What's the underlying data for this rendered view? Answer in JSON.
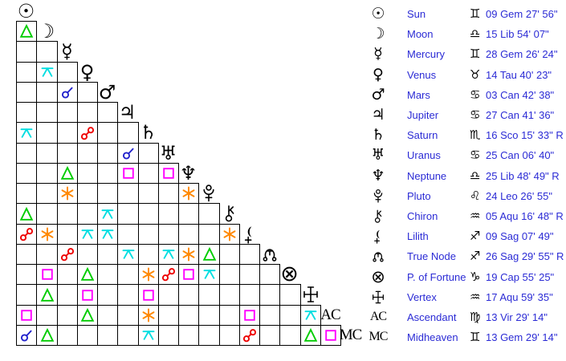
{
  "colors": {
    "background": "#ffffff",
    "grid_line": "#000000",
    "glyph": "#000000",
    "legend_text": "#2b2bd5",
    "conjunction": "#2222cc",
    "opposition": "#ee0000",
    "trine": "#00cc00",
    "square": "#ff00ff",
    "sextile": "#ff8800",
    "quincunx": "#00dde0"
  },
  "points": [
    {
      "name": "Sun",
      "glyph": "☉",
      "glyph_type": "unicode",
      "sign": "♊",
      "position": "09 Gem 27' 56\""
    },
    {
      "name": "Moon",
      "glyph": "☽",
      "glyph_type": "unicode",
      "sign": "♎",
      "position": "15 Lib 54' 07\""
    },
    {
      "name": "Mercury",
      "glyph": "☿",
      "glyph_type": "unicode",
      "sign": "♊",
      "position": "28 Gem 26' 24\""
    },
    {
      "name": "Venus",
      "glyph": "♀",
      "glyph_type": "unicode",
      "sign": "♉",
      "position": "14 Tau 40' 23\""
    },
    {
      "name": "Mars",
      "glyph": "♂",
      "glyph_type": "unicode",
      "sign": "♋",
      "position": "03 Can 42' 38\""
    },
    {
      "name": "Jupiter",
      "glyph": "♃",
      "glyph_type": "unicode",
      "sign": "♋",
      "position": "27 Can 41' 36\""
    },
    {
      "name": "Saturn",
      "glyph": "♄",
      "glyph_type": "unicode",
      "sign": "♏",
      "position": "16 Sco 15' 33\" R"
    },
    {
      "name": "Uranus",
      "glyph": "♅",
      "glyph_type": "unicode",
      "sign": "♋",
      "position": "25 Can 06' 40\""
    },
    {
      "name": "Neptune",
      "glyph": "♆",
      "glyph_type": "unicode",
      "sign": "♎",
      "position": "25 Lib 48' 49\" R"
    },
    {
      "name": "Pluto",
      "glyph": "pluto",
      "glyph_type": "svg",
      "sign": "♌",
      "position": "24 Leo 26' 55\""
    },
    {
      "name": "Chiron",
      "glyph": "chiron",
      "glyph_type": "svg",
      "sign": "♒",
      "position": "05 Aqu 16' 48\" R"
    },
    {
      "name": "Lilith",
      "glyph": "lilith",
      "glyph_type": "svg",
      "sign": "♐",
      "position": "09 Sag 07' 49\""
    },
    {
      "name": "True Node",
      "glyph": "truenode",
      "glyph_type": "svg",
      "sign": "♐",
      "position": "26 Sag 29' 55\" R"
    },
    {
      "name": "P. of Fortune",
      "glyph": "⊗",
      "glyph_type": "unicode-pof",
      "sign": "♑",
      "position": "19 Cap 55' 25\""
    },
    {
      "name": "Vertex",
      "glyph": "vertex",
      "glyph_type": "svg",
      "sign": "♒",
      "position": "17 Aqu 59' 35\""
    },
    {
      "name": "Ascendant",
      "glyph": "AC",
      "glyph_type": "text",
      "sign": "♍",
      "position": "13 Vir 29' 14\""
    },
    {
      "name": "Midheaven",
      "glyph": "MC",
      "glyph_type": "text",
      "sign": "♊",
      "position": "13 Gem 29' 14\""
    }
  ],
  "aspect_grid": {
    "rows": [
      {
        "row": "Moon",
        "cells": [
          {
            "col": "Sun",
            "type": "trine"
          }
        ]
      },
      {
        "row": "Mercury",
        "cells": []
      },
      {
        "row": "Venus",
        "cells": [
          {
            "col": "Moon",
            "type": "quincunx"
          }
        ]
      },
      {
        "row": "Mars",
        "cells": [
          {
            "col": "Mercury",
            "type": "conjunction"
          }
        ]
      },
      {
        "row": "Jupiter",
        "cells": []
      },
      {
        "row": "Saturn",
        "cells": [
          {
            "col": "Sun",
            "type": "quincunx"
          },
          {
            "col": "Venus",
            "type": "opposition"
          }
        ]
      },
      {
        "row": "Uranus",
        "cells": [
          {
            "col": "Jupiter",
            "type": "conjunction"
          }
        ]
      },
      {
        "row": "Neptune",
        "cells": [
          {
            "col": "Mercury",
            "type": "trine"
          },
          {
            "col": "Jupiter",
            "type": "square"
          },
          {
            "col": "Uranus",
            "type": "square"
          }
        ]
      },
      {
        "row": "Pluto",
        "cells": [
          {
            "col": "Mercury",
            "type": "sextile"
          },
          {
            "col": "Neptune",
            "type": "sextile"
          }
        ]
      },
      {
        "row": "Chiron",
        "cells": [
          {
            "col": "Sun",
            "type": "trine"
          },
          {
            "col": "Mars",
            "type": "quincunx"
          }
        ]
      },
      {
        "row": "Lilith",
        "cells": [
          {
            "col": "Sun",
            "type": "opposition"
          },
          {
            "col": "Moon",
            "type": "sextile"
          },
          {
            "col": "Venus",
            "type": "quincunx"
          },
          {
            "col": "Mars",
            "type": "quincunx"
          },
          {
            "col": "Chiron",
            "type": "sextile"
          }
        ]
      },
      {
        "row": "True Node",
        "cells": [
          {
            "col": "Mercury",
            "type": "opposition"
          },
          {
            "col": "Jupiter",
            "type": "quincunx"
          },
          {
            "col": "Uranus",
            "type": "quincunx"
          },
          {
            "col": "Neptune",
            "type": "sextile"
          },
          {
            "col": "Pluto",
            "type": "trine"
          }
        ]
      },
      {
        "row": "P. of Fortune",
        "cells": [
          {
            "col": "Moon",
            "type": "square"
          },
          {
            "col": "Venus",
            "type": "trine"
          },
          {
            "col": "Saturn",
            "type": "sextile"
          },
          {
            "col": "Uranus",
            "type": "opposition"
          },
          {
            "col": "Neptune",
            "type": "square"
          },
          {
            "col": "Pluto",
            "type": "quincunx"
          }
        ]
      },
      {
        "row": "Vertex",
        "cells": [
          {
            "col": "Moon",
            "type": "trine"
          },
          {
            "col": "Venus",
            "type": "square"
          },
          {
            "col": "Saturn",
            "type": "square"
          }
        ]
      },
      {
        "row": "Ascendant",
        "cells": [
          {
            "col": "Sun",
            "type": "square"
          },
          {
            "col": "Venus",
            "type": "trine"
          },
          {
            "col": "Saturn",
            "type": "sextile"
          },
          {
            "col": "Lilith",
            "type": "square"
          },
          {
            "col": "Vertex",
            "type": "quincunx"
          }
        ]
      },
      {
        "row": "Midheaven",
        "cells": [
          {
            "col": "Sun",
            "type": "conjunction"
          },
          {
            "col": "Moon",
            "type": "trine"
          },
          {
            "col": "Saturn",
            "type": "quincunx"
          },
          {
            "col": "Lilith",
            "type": "opposition"
          },
          {
            "col": "Vertex",
            "type": "trine"
          },
          {
            "col": "Ascendant",
            "type": "square"
          }
        ]
      }
    ]
  }
}
